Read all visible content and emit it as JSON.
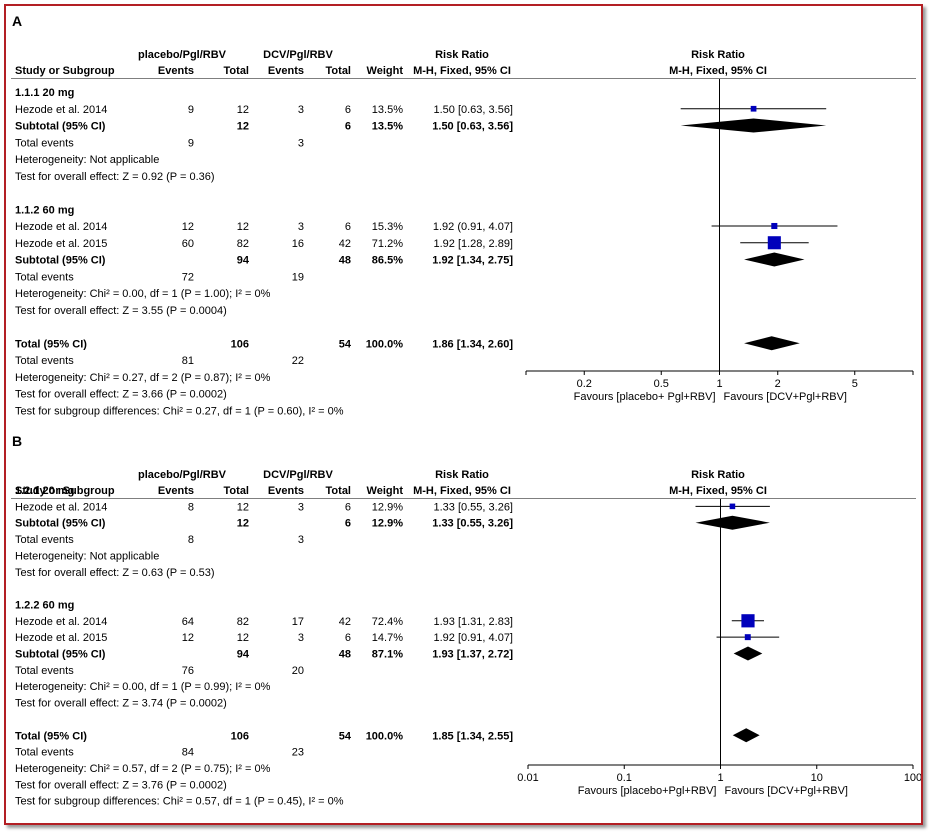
{
  "frame": {
    "border_color": "#b31f24"
  },
  "chart_data": [
    {
      "type": "forest",
      "panel_label": "A",
      "headers": {
        "group1": "placebo/Pgl/RBV",
        "group2": "DCV/Pgl/RBV",
        "risk_ratio_title": "Risk Ratio",
        "plot_title": "Risk Ratio",
        "study_col": "Study or Subgroup",
        "events": "Events",
        "total": "Total",
        "weight": "Weight",
        "method": "M-H, Fixed, 95% CI",
        "plot_method": "M-H, Fixed, 95% CI"
      },
      "rows": [
        {
          "kind": "subgroup",
          "label": "1.1.1 20 mg"
        },
        {
          "kind": "study",
          "label": "Hezode et al. 2014",
          "e1": "9",
          "t1": "12",
          "e2": "3",
          "t2": "6",
          "weight": "13.5%",
          "ci_text": "1.50 [0.63, 3.56]",
          "rr": 1.5,
          "lo": 0.63,
          "hi": 3.56,
          "w": 13.5
        },
        {
          "kind": "subtotal",
          "label": "Subtotal (95% CI)",
          "t1": "12",
          "t2": "6",
          "weight": "13.5%",
          "ci_text": "1.50 [0.63, 3.56]",
          "rr": 1.5,
          "lo": 0.63,
          "hi": 3.56
        },
        {
          "kind": "events",
          "label": "Total events",
          "e1": "9",
          "e2": "3"
        },
        {
          "kind": "text",
          "label": "Heterogeneity: Not applicable"
        },
        {
          "kind": "text",
          "label": "Test for overall effect: Z = 0.92 (P = 0.36)"
        },
        {
          "kind": "spacer"
        },
        {
          "kind": "subgroup",
          "label": "1.1.2 60 mg"
        },
        {
          "kind": "study",
          "label": "Hezode et al. 2014",
          "e1": "12",
          "t1": "12",
          "e2": "3",
          "t2": "6",
          "weight": "15.3%",
          "ci_text": "1.92 (0.91, 4.07]",
          "rr": 1.92,
          "lo": 0.91,
          "hi": 4.07,
          "w": 15.3
        },
        {
          "kind": "study",
          "label": "Hezode et al. 2015",
          "e1": "60",
          "t1": "82",
          "e2": "16",
          "t2": "42",
          "weight": "71.2%",
          "ci_text": "1.92 [1.28, 2.89]",
          "rr": 1.92,
          "lo": 1.28,
          "hi": 2.89,
          "w": 71.2
        },
        {
          "kind": "subtotal",
          "label": "Subtotal (95% CI)",
          "t1": "94",
          "t2": "48",
          "weight": "86.5%",
          "ci_text": "1.92 [1.34, 2.75]",
          "rr": 1.92,
          "lo": 1.34,
          "hi": 2.75
        },
        {
          "kind": "events",
          "label": "Total events",
          "e1": "72",
          "e2": "19"
        },
        {
          "kind": "text",
          "label": "Heterogeneity: Chi² = 0.00, df = 1 (P = 1.00); I² = 0%"
        },
        {
          "kind": "text",
          "label": "Test for overall effect: Z = 3.55 (P = 0.0004)"
        },
        {
          "kind": "spacer"
        },
        {
          "kind": "total",
          "label": "Total (95% CI)",
          "t1": "106",
          "t2": "54",
          "weight": "100.0%",
          "ci_text": "1.86 [1.34, 2.60]",
          "rr": 1.86,
          "lo": 1.34,
          "hi": 2.6
        },
        {
          "kind": "events",
          "label": "Total events",
          "e1": "81",
          "e2": "22"
        },
        {
          "kind": "text",
          "label": "Heterogeneity: Chi² = 0.27, df = 2 (P = 0.87); I² = 0%"
        },
        {
          "kind": "text",
          "label": "Test for overall effect: Z = 3.66 (P = 0.0002)"
        },
        {
          "kind": "text",
          "label": "Test for subgroup differences: Chi² = 0.27, df = 1 (P = 0.60), I² = 0%"
        }
      ],
      "x_axis": {
        "scale": "log",
        "xlim": [
          0.1,
          10
        ],
        "ticks": [
          0.2,
          0.5,
          1,
          2,
          5
        ],
        "tick_labels": [
          "0.2",
          "0.5",
          "1",
          "2",
          "5"
        ],
        "favours_left": "Favours [placebo+ Pgl+RBV]",
        "favours_right": "Favours [DCV+Pgl+RBV]"
      }
    },
    {
      "type": "forest",
      "panel_label": "B",
      "headers": {
        "group1": "placebo/Pgl/RBV",
        "group2": "DCV/Pgl/RBV",
        "risk_ratio_title": "Risk Ratio",
        "plot_title": "Risk Ratio",
        "study_col": "Study or Subgroup",
        "events": "Events",
        "total": "Total",
        "weight": "Weight",
        "method": "M-H, Fixed, 95% CI",
        "plot_method": "M-H, Fixed, 95% CI"
      },
      "rows": [
        {
          "kind": "subgroup",
          "label": "1.2.1 20 mg"
        },
        {
          "kind": "study",
          "label": "Hezode et al. 2014",
          "e1": "8",
          "t1": "12",
          "e2": "3",
          "t2": "6",
          "weight": "12.9%",
          "ci_text": "1.33 [0.55, 3.26]",
          "rr": 1.33,
          "lo": 0.55,
          "hi": 3.26,
          "w": 12.9
        },
        {
          "kind": "subtotal",
          "label": "Subtotal (95% CI)",
          "t1": "12",
          "t2": "6",
          "weight": "12.9%",
          "ci_text": "1.33 [0.55, 3.26]",
          "rr": 1.33,
          "lo": 0.55,
          "hi": 3.26
        },
        {
          "kind": "events",
          "label": "Total events",
          "e1": "8",
          "e2": "3"
        },
        {
          "kind": "text",
          "label": "Heterogeneity: Not applicable"
        },
        {
          "kind": "text",
          "label": "Test for overall effect: Z = 0.63 (P = 0.53)"
        },
        {
          "kind": "spacer"
        },
        {
          "kind": "subgroup",
          "label": "1.2.2 60 mg"
        },
        {
          "kind": "study",
          "label": "Hezode et al. 2014",
          "e1": "64",
          "t1": "82",
          "e2": "17",
          "t2": "42",
          "weight": "72.4%",
          "ci_text": "1.93 [1.31, 2.83]",
          "rr": 1.93,
          "lo": 1.31,
          "hi": 2.83,
          "w": 72.4
        },
        {
          "kind": "study",
          "label": "Hezode et al. 2015",
          "e1": "12",
          "t1": "12",
          "e2": "3",
          "t2": "6",
          "weight": "14.7%",
          "ci_text": "1.92 [0.91, 4.07]",
          "rr": 1.92,
          "lo": 0.91,
          "hi": 4.07,
          "w": 14.7
        },
        {
          "kind": "subtotal",
          "label": "Subtotal (95% CI)",
          "t1": "94",
          "t2": "48",
          "weight": "87.1%",
          "ci_text": "1.93 [1.37, 2.72]",
          "rr": 1.93,
          "lo": 1.37,
          "hi": 2.72
        },
        {
          "kind": "events",
          "label": "Total events",
          "e1": "76",
          "e2": "20"
        },
        {
          "kind": "text",
          "label": "Heterogeneity: Chi² = 0.00, df = 1 (P = 0.99); I² = 0%"
        },
        {
          "kind": "text",
          "label": "Test for overall effect: Z = 3.74 (P = 0.0002)"
        },
        {
          "kind": "spacer"
        },
        {
          "kind": "total",
          "label": "Total (95% CI)",
          "t1": "106",
          "t2": "54",
          "weight": "100.0%",
          "ci_text": "1.85 [1.34, 2.55]",
          "rr": 1.85,
          "lo": 1.34,
          "hi": 2.55
        },
        {
          "kind": "events",
          "label": "Total events",
          "e1": "84",
          "e2": "23"
        },
        {
          "kind": "text",
          "label": "Heterogeneity: Chi² = 0.57, df = 2 (P = 0.75); I² = 0%"
        },
        {
          "kind": "text",
          "label": "Test for overall effect: Z = 3.76 (P = 0.0002)"
        },
        {
          "kind": "text",
          "label": "Test for subgroup differences: Chi² = 0.57, df = 1 (P = 0.45), I² = 0%"
        }
      ],
      "x_axis": {
        "scale": "log",
        "xlim": [
          0.01,
          100
        ],
        "ticks": [
          0.01,
          0.1,
          1,
          10,
          100
        ],
        "tick_labels": [
          "0.01",
          "0.1",
          "1",
          "10",
          "100"
        ],
        "favours_left": "Favours [placebo+Pgl+RBV]",
        "favours_right": "Favours [DCV+Pgl+RBV]"
      }
    }
  ],
  "colors": {
    "study_square": "#0000bb",
    "diamond": "#000000",
    "line": "#000000",
    "separator": "#7f7f7f"
  }
}
